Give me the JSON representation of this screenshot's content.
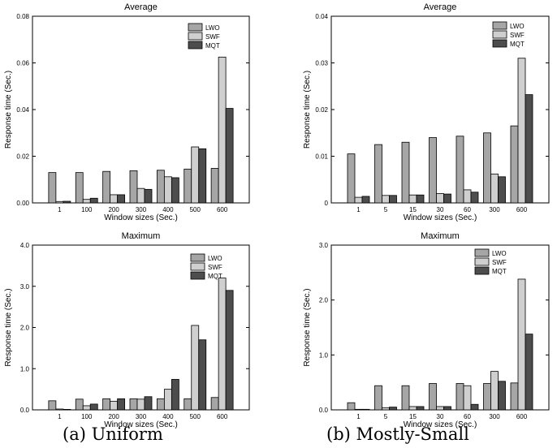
{
  "captions": {
    "left": "(a) Uniform",
    "right": "(b) Mostly-Small"
  },
  "colors": {
    "LWO": "#a6a6a6",
    "SWF": "#cfcfcf",
    "MQT": "#4d4d4d"
  },
  "chart_data": [
    {
      "type": "bar",
      "title": "Average",
      "xlabel": "Window sizes (Sec.)",
      "ylabel": "Response time (Sec.)",
      "categories": [
        "1",
        "100",
        "200",
        "300",
        "400",
        "500",
        "600"
      ],
      "ylim": [
        0,
        0.08
      ],
      "yticks": [
        0,
        0.02,
        0.04,
        0.06,
        0.08
      ],
      "ytick_labels": [
        "0.00",
        "0.02",
        "0.04",
        "0.06",
        "0.08"
      ],
      "legend": "top-right",
      "series": [
        {
          "name": "LWO",
          "values": [
            0.013,
            0.013,
            0.0135,
            0.0138,
            0.014,
            0.0145,
            0.0148
          ]
        },
        {
          "name": "SWF",
          "values": [
            0.0006,
            0.0015,
            0.0035,
            0.0062,
            0.0112,
            0.024,
            0.0625
          ]
        },
        {
          "name": "MQT",
          "values": [
            0.0007,
            0.002,
            0.0035,
            0.0058,
            0.0108,
            0.0232,
            0.0405
          ]
        }
      ]
    },
    {
      "type": "bar",
      "title": "Average",
      "xlabel": "Window sizes (Sec.)",
      "ylabel": "Response time (Sec.)",
      "categories": [
        "1",
        "5",
        "15",
        "30",
        "60",
        "300",
        "600"
      ],
      "ylim": [
        0,
        0.04
      ],
      "yticks": [
        0,
        0.01,
        0.02,
        0.03,
        0.04
      ],
      "ytick_labels": [
        "0",
        "0.01",
        "0.02",
        "0.03",
        "0.04"
      ],
      "legend": "top-right",
      "series": [
        {
          "name": "LWO",
          "values": [
            0.0105,
            0.0125,
            0.013,
            0.014,
            0.0143,
            0.015,
            0.0165
          ]
        },
        {
          "name": "SWF",
          "values": [
            0.0012,
            0.0016,
            0.0017,
            0.002,
            0.0028,
            0.0062,
            0.031
          ]
        },
        {
          "name": "MQT",
          "values": [
            0.0014,
            0.0016,
            0.0017,
            0.0019,
            0.0023,
            0.0056,
            0.0232
          ]
        }
      ]
    },
    {
      "type": "bar",
      "title": "Maximum",
      "xlabel": "Window sizes (Sec.)",
      "ylabel": "Response time (Sec.)",
      "categories": [
        "1",
        "100",
        "200",
        "300",
        "400",
        "500",
        "600"
      ],
      "ylim": [
        0,
        4
      ],
      "yticks": [
        0,
        1,
        2,
        3,
        4
      ],
      "ytick_labels": [
        "0.0",
        "1.0",
        "2.0",
        "3.0",
        "4.0"
      ],
      "legend": "top-right",
      "series": [
        {
          "name": "LWO",
          "values": [
            0.22,
            0.26,
            0.27,
            0.27,
            0.27,
            0.27,
            0.3
          ]
        },
        {
          "name": "SWF",
          "values": [
            0.02,
            0.1,
            0.21,
            0.26,
            0.5,
            2.05,
            3.2
          ]
        },
        {
          "name": "MQT",
          "values": [
            0.0,
            0.14,
            0.27,
            0.32,
            0.74,
            1.7,
            2.9
          ]
        }
      ]
    },
    {
      "type": "bar",
      "title": "Maximum",
      "xlabel": "Window sizes (Sec.)",
      "ylabel": "Response time (Sec.)",
      "categories": [
        "1",
        "5",
        "15",
        "30",
        "60",
        "300",
        "600"
      ],
      "ylim": [
        0,
        3
      ],
      "yticks": [
        0,
        1,
        2,
        3
      ],
      "ytick_labels": [
        "0.0",
        "1.0",
        "2.0",
        "3.0"
      ],
      "legend": "top-right",
      "series": [
        {
          "name": "LWO",
          "values": [
            0.13,
            0.44,
            0.44,
            0.48,
            0.48,
            0.48,
            0.49
          ]
        },
        {
          "name": "SWF",
          "values": [
            0.01,
            0.04,
            0.06,
            0.06,
            0.44,
            0.7,
            2.38
          ]
        },
        {
          "name": "MQT",
          "values": [
            0.01,
            0.05,
            0.06,
            0.06,
            0.1,
            0.52,
            1.38
          ]
        }
      ]
    }
  ]
}
